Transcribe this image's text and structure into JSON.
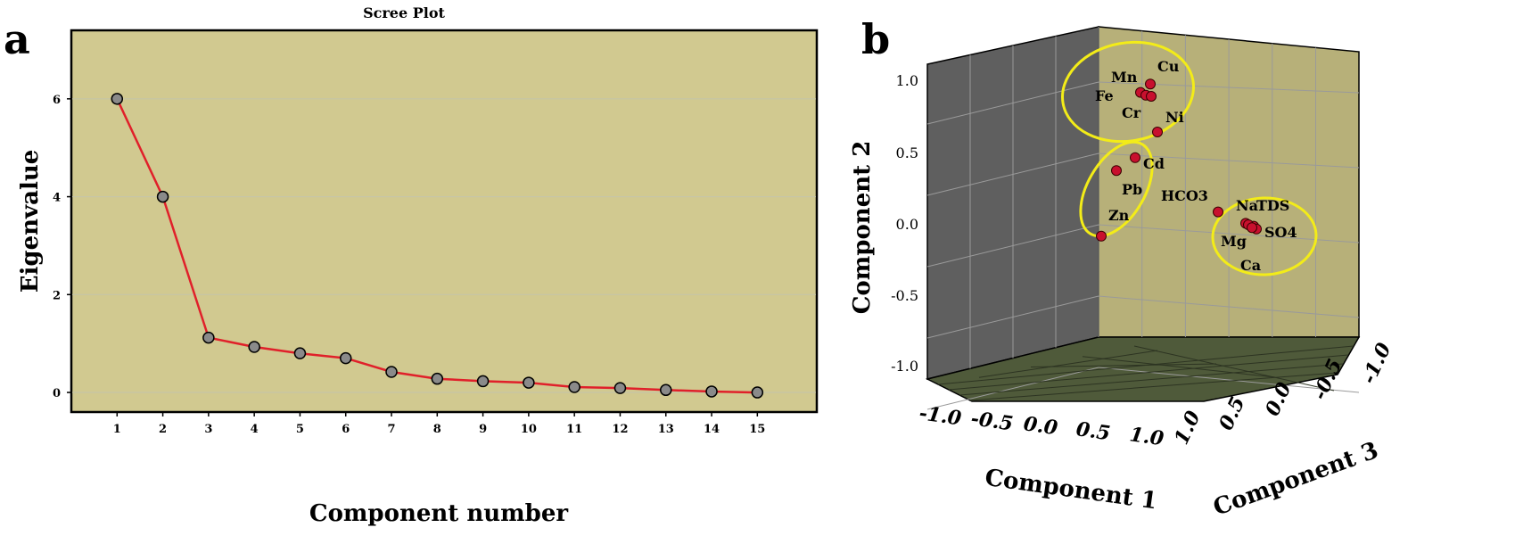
{
  "panel_labels": {
    "a": "a",
    "b": "b"
  },
  "colors": {
    "plot_bg": "#d1c990",
    "line": "#e0202a",
    "marker_fill": "#8a8a8a",
    "point_fill": "#c8102e",
    "back_wall": "#5f5f5f",
    "side_wall": "#b7b079",
    "floor": "#4f5a3a",
    "ellipse": "#f3ec18"
  },
  "chart_data": [
    {
      "type": "line",
      "title": "Scree Plot",
      "xlabel": "Component number",
      "ylabel": "Eigenvalue",
      "x": [
        1,
        2,
        3,
        4,
        5,
        6,
        7,
        8,
        9,
        10,
        11,
        12,
        13,
        14,
        15
      ],
      "series": [
        {
          "values": [
            6.0,
            4.0,
            1.12,
            0.93,
            0.8,
            0.7,
            0.42,
            0.28,
            0.23,
            0.2,
            0.11,
            0.09,
            0.05,
            0.02,
            0.0
          ]
        }
      ],
      "x_ticks": [
        "1",
        "2",
        "3",
        "4",
        "5",
        "6",
        "7",
        "8",
        "9",
        "10",
        "11",
        "12",
        "13",
        "14",
        "15"
      ],
      "y_ticks": [
        "0",
        "2",
        "4",
        "6"
      ],
      "xlim": [
        0,
        16.3
      ],
      "ylim": [
        -0.4,
        7.4
      ],
      "grid": "horizontal"
    },
    {
      "type": "scatter",
      "xlabel": "Component 1",
      "ylabel": "Component 2",
      "zlabel": "Component 3",
      "y_ticks": [
        "1.0",
        "0.5",
        "0.0",
        "-0.5",
        "-1.0"
      ],
      "x_ticks": [
        "-1.0",
        "-0.5",
        "0.0",
        "0.5",
        "1.0"
      ],
      "z_ticks": [
        "1.0",
        "0.5",
        "0.0",
        "-0.5",
        "-1.0"
      ],
      "grid": true,
      "points": [
        {
          "label": "Mn",
          "y": 0.94
        },
        {
          "label": "Cu",
          "y": 0.98
        },
        {
          "label": "Fe",
          "y": 0.92
        },
        {
          "label": "Cr",
          "y": 0.9
        },
        {
          "label": "Ni",
          "y": 0.65
        },
        {
          "label": "Cd",
          "y": 0.47
        },
        {
          "label": "Pb",
          "y": 0.38
        },
        {
          "label": "Zn",
          "y": -0.08
        },
        {
          "label": "HCO3",
          "y": 0.09
        },
        {
          "label": "Na",
          "y": 0.01
        },
        {
          "label": "TDS",
          "y": -0.01
        },
        {
          "label": "SO4",
          "y": -0.03
        },
        {
          "label": "Mg",
          "y": 0.0
        },
        {
          "label": "Ca",
          "y": -0.02
        }
      ],
      "groups": [
        [
          "Mn",
          "Cu",
          "Fe",
          "Cr",
          "Ni"
        ],
        [
          "Cd",
          "Pb",
          "Zn"
        ],
        [
          "Na",
          "TDS",
          "SO4",
          "Mg",
          "Ca"
        ]
      ]
    }
  ]
}
